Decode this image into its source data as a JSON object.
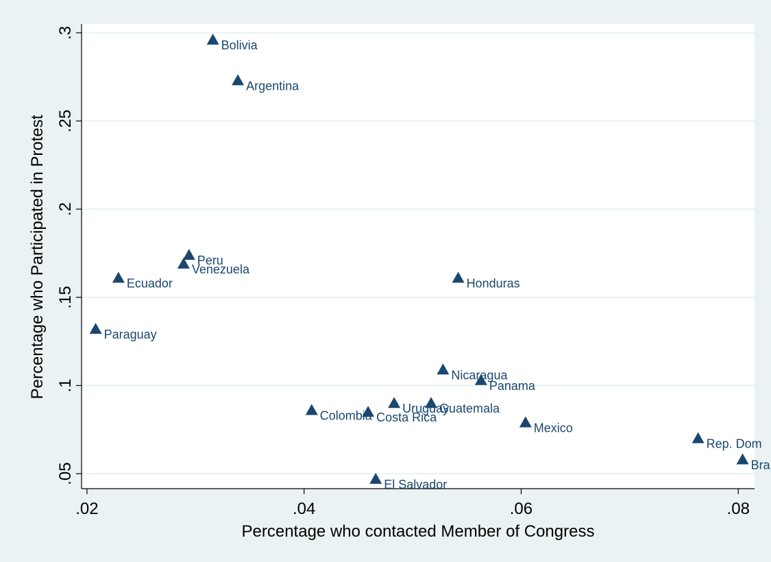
{
  "chart_data": {
    "type": "scatter",
    "title": "",
    "xlabel": "Percentage who contacted Member of Congress",
    "ylabel": "Percentage who Participated in Protest",
    "xlim": [
      0.0195,
      0.0815
    ],
    "ylim": [
      0.0415,
      0.305
    ],
    "xticks": [
      0.02,
      0.04,
      0.06,
      0.08
    ],
    "xtick_labels": [
      ".02",
      ".04",
      ".06",
      ".08"
    ],
    "yticks": [
      0.05,
      0.1,
      0.15,
      0.2,
      0.25,
      0.3
    ],
    "ytick_labels": [
      ".05",
      ".1",
      ".15",
      ".2",
      ".25",
      ".3"
    ],
    "grid": "horizontal",
    "legend": "none",
    "marker": "triangle",
    "marker_color": "#1a476f",
    "label_color": "#1a476f",
    "points": [
      {
        "label": "Bolivia",
        "x": 0.0316,
        "y": 0.296
      },
      {
        "label": "Argentina",
        "x": 0.0339,
        "y": 0.273
      },
      {
        "label": "Peru",
        "x": 0.0294,
        "y": 0.174
      },
      {
        "label": "Venezuela",
        "x": 0.0289,
        "y": 0.169
      },
      {
        "label": "Ecuador",
        "x": 0.0229,
        "y": 0.161
      },
      {
        "label": "Honduras",
        "x": 0.0542,
        "y": 0.161
      },
      {
        "label": "Paraguay",
        "x": 0.0208,
        "y": 0.132
      },
      {
        "label": "Nicaragua",
        "x": 0.0528,
        "y": 0.109
      },
      {
        "label": "Panama",
        "x": 0.0563,
        "y": 0.103
      },
      {
        "label": "Uruguay",
        "x": 0.0483,
        "y": 0.09
      },
      {
        "label": "Guatemala",
        "x": 0.0517,
        "y": 0.09
      },
      {
        "label": "Colombia",
        "x": 0.0407,
        "y": 0.086
      },
      {
        "label": "Costa Rica",
        "x": 0.0459,
        "y": 0.085
      },
      {
        "label": "Mexico",
        "x": 0.0604,
        "y": 0.079
      },
      {
        "label": "Rep. Dom",
        "x": 0.0763,
        "y": 0.07
      },
      {
        "label": "Bra",
        "x": 0.0804,
        "y": 0.058
      },
      {
        "label": "El Salvador",
        "x": 0.0466,
        "y": 0.047
      }
    ]
  }
}
